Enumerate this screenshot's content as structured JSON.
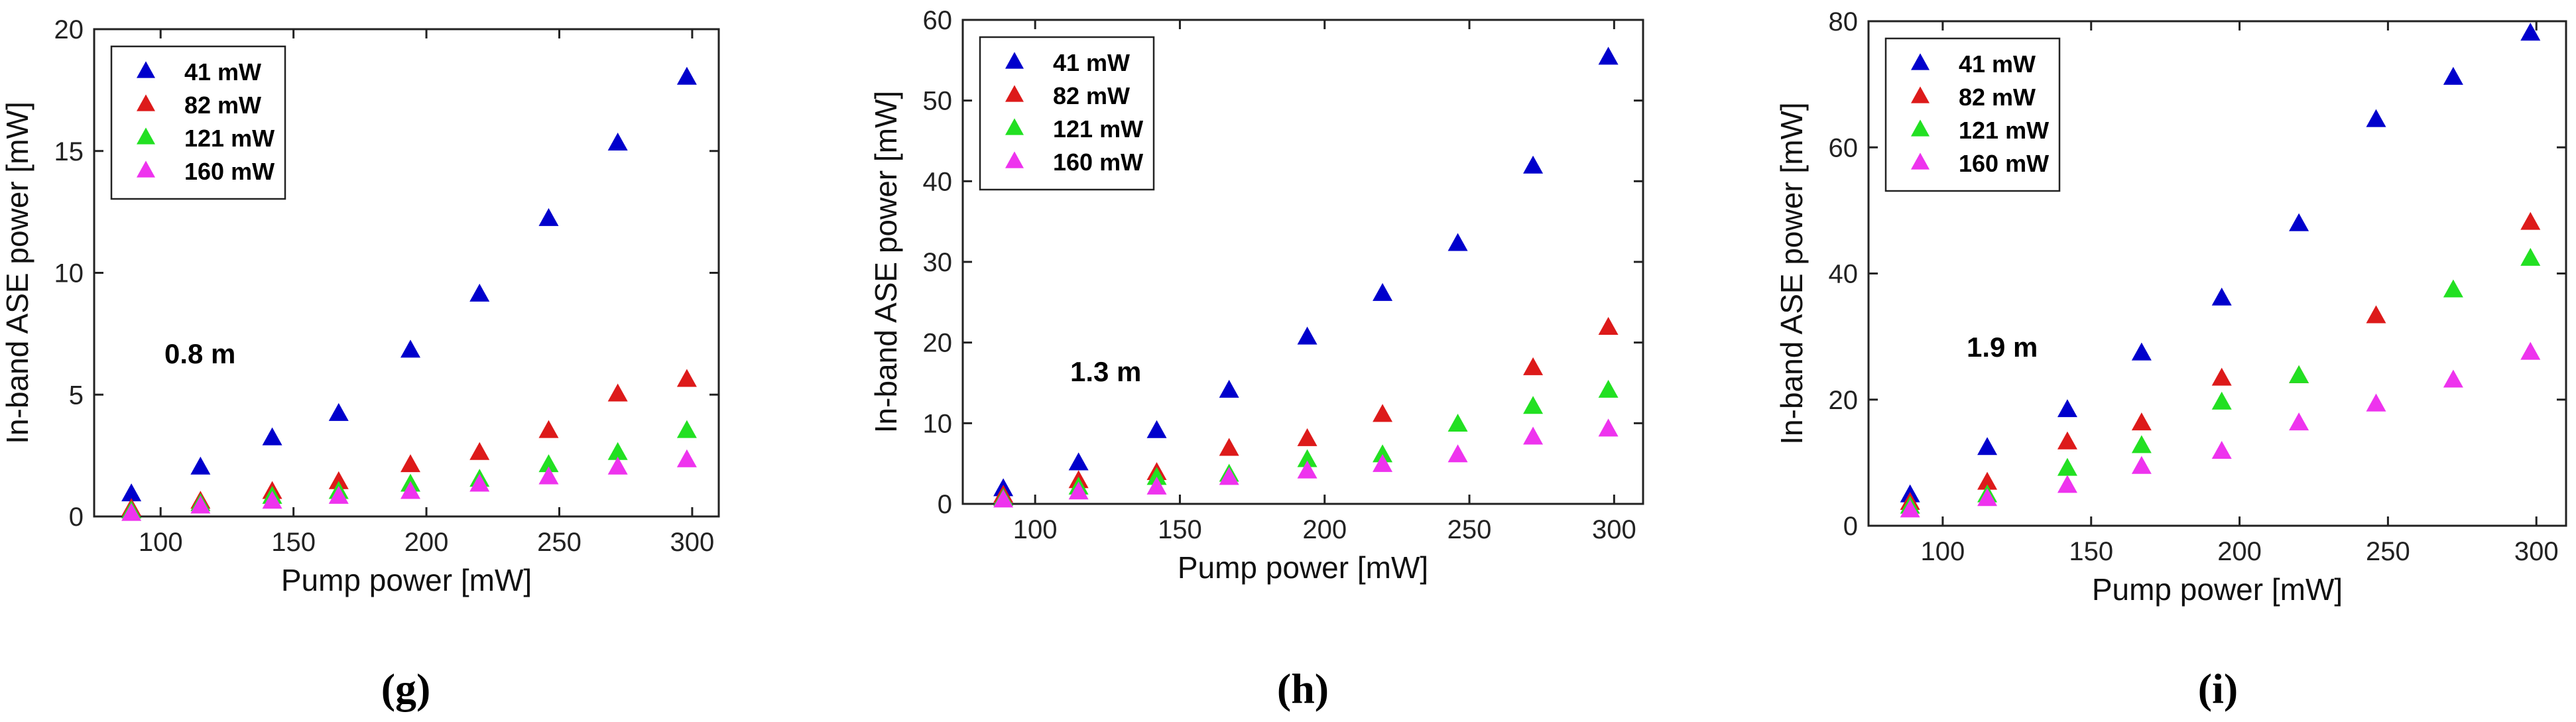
{
  "figure": {
    "colors": {
      "41 mW": "#0000cc",
      "82 mW": "#dd1a1a",
      "121 mW": "#22e022",
      "160 mW": "#ee33ee"
    }
  },
  "chart_data": [
    {
      "type": "scatter",
      "panel_label": "(g)",
      "title": "",
      "xlabel": "Pump power [mW]",
      "ylabel": "In-band ASE power [mW]",
      "xlim": [
        75,
        310
      ],
      "ylim": [
        0,
        20
      ],
      "xticks": [
        100,
        150,
        200,
        250,
        300
      ],
      "yticks": [
        0,
        5,
        10,
        15,
        20
      ],
      "legend_position": "top-left",
      "annotation": "0.8 m",
      "x": [
        89,
        115,
        142,
        167,
        194,
        220,
        246,
        272,
        298
      ],
      "series": [
        {
          "name": "41 mW",
          "values": [
            0.9,
            2.0,
            3.2,
            4.2,
            6.8,
            9.1,
            12.2,
            15.3,
            18.0
          ]
        },
        {
          "name": "82 mW",
          "values": [
            0.3,
            0.6,
            1.0,
            1.4,
            2.1,
            2.6,
            3.5,
            5.0,
            5.6
          ]
        },
        {
          "name": "121 mW",
          "values": [
            0.2,
            0.5,
            0.8,
            1.0,
            1.3,
            1.5,
            2.1,
            2.6,
            3.5
          ]
        },
        {
          "name": "160 mW",
          "values": [
            0.1,
            0.4,
            0.6,
            0.8,
            1.0,
            1.3,
            1.6,
            2.0,
            2.3
          ]
        }
      ]
    },
    {
      "type": "scatter",
      "panel_label": "(h)",
      "title": "",
      "xlabel": "Pump power [mW]",
      "ylabel": "In-band ASE power [mW]",
      "xlim": [
        75,
        310
      ],
      "ylim": [
        0,
        60
      ],
      "xticks": [
        100,
        150,
        200,
        250,
        300
      ],
      "yticks": [
        0,
        10,
        20,
        30,
        40,
        50,
        60
      ],
      "legend_position": "top-left",
      "annotation": "1.3 m",
      "x": [
        89,
        115,
        142,
        167,
        194,
        220,
        246,
        272,
        298
      ],
      "series": [
        {
          "name": "41 mW",
          "values": [
            1.8,
            5.0,
            9.0,
            14.0,
            20.6,
            26.0,
            32.2,
            41.8,
            55.3
          ]
        },
        {
          "name": "82 mW",
          "values": [
            1.0,
            2.8,
            3.8,
            6.8,
            8.0,
            11.0,
            null,
            16.8,
            21.8
          ]
        },
        {
          "name": "121 mW",
          "values": [
            0.6,
            2.0,
            3.2,
            3.6,
            5.4,
            6.0,
            9.8,
            12.0,
            14.0
          ]
        },
        {
          "name": "160 mW",
          "values": [
            0.4,
            1.4,
            2.0,
            3.2,
            4.0,
            4.8,
            6.0,
            8.2,
            9.2
          ]
        }
      ]
    },
    {
      "type": "scatter",
      "panel_label": "(i)",
      "title": "",
      "xlabel": "Pump power [mW]",
      "ylabel": "In-band ASE power [mW]",
      "xlim": [
        75,
        310
      ],
      "ylim": [
        0,
        80
      ],
      "xticks": [
        100,
        150,
        200,
        250,
        300
      ],
      "yticks": [
        0,
        20,
        40,
        60,
        80
      ],
      "legend_position": "top-left",
      "annotation": "1.9 m",
      "x": [
        89,
        115,
        142,
        167,
        194,
        220,
        246,
        272,
        298
      ],
      "series": [
        {
          "name": "41 mW",
          "values": [
            4.8,
            12.3,
            18.3,
            27.3,
            36.0,
            47.8,
            64.3,
            71.0,
            78.0
          ]
        },
        {
          "name": "82 mW",
          "values": [
            3.6,
            6.8,
            13.2,
            16.2,
            23.3,
            23.7,
            33.2,
            null,
            48.0
          ]
        },
        {
          "name": "121 mW",
          "values": [
            3.0,
            4.8,
            9.0,
            12.6,
            19.5,
            23.7,
            null,
            37.3,
            42.3
          ]
        },
        {
          "name": "160 mW",
          "values": [
            2.4,
            4.2,
            6.3,
            9.3,
            11.7,
            16.2,
            19.2,
            23.0,
            27.4
          ]
        }
      ]
    }
  ]
}
